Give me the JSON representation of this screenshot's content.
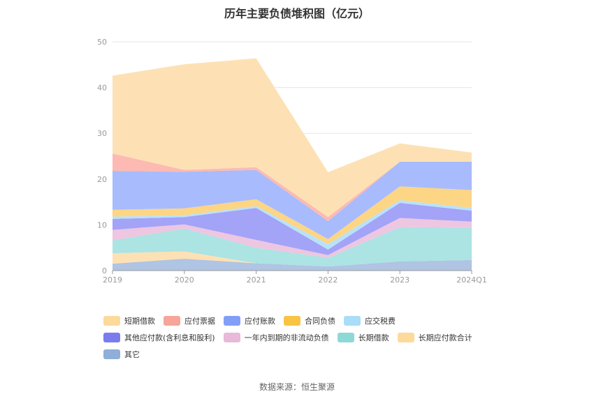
{
  "chart_data": {
    "type": "area",
    "title": "历年主要负债堆积图（亿元）",
    "categories": [
      "2019",
      "2020",
      "2021",
      "2022",
      "2023",
      "2024Q1"
    ],
    "ylim": [
      0,
      50
    ],
    "yticks": [
      0,
      10,
      20,
      30,
      40,
      50
    ],
    "grid": true,
    "legend_position": "bottom",
    "series": [
      {
        "name": "其它",
        "color": "#b0c4e3",
        "values": [
          1.5,
          2.6,
          1.6,
          0.9,
          2.0,
          2.3
        ]
      },
      {
        "name": "长期应付款合计",
        "color": "#fde1b4",
        "values": [
          2.3,
          1.6,
          0.0,
          0.0,
          0.0,
          0.0
        ]
      },
      {
        "name": "长期借款",
        "color": "#ace3e3",
        "values": [
          2.8,
          5.0,
          3.4,
          1.9,
          7.5,
          7.1
        ]
      },
      {
        "name": "一年内到期的非流动负债",
        "color": "#edc6e1",
        "values": [
          2.3,
          0.9,
          1.7,
          0.6,
          2.0,
          1.3
        ]
      },
      {
        "name": "其他应付款(含利息和股利)",
        "color": "#a3a3f7",
        "values": [
          2.4,
          1.6,
          7.0,
          1.2,
          3.3,
          2.4
        ]
      },
      {
        "name": "应交税费",
        "color": "#b9e2f9",
        "values": [
          0.5,
          0.4,
          0.4,
          1.2,
          0.6,
          0.6
        ]
      },
      {
        "name": "合同负债",
        "color": "#fcd585",
        "values": [
          1.5,
          1.5,
          1.5,
          1.1,
          3.0,
          3.9
        ]
      },
      {
        "name": "应付账款",
        "color": "#a8bbfc",
        "values": [
          8.5,
          8.0,
          6.4,
          3.9,
          5.4,
          6.2
        ]
      },
      {
        "name": "应付票据",
        "color": "#fcbab3",
        "values": [
          3.8,
          0.4,
          0.6,
          0.9,
          0.0,
          0.0
        ]
      },
      {
        "name": "短期借款",
        "color": "#fde1b4",
        "values": [
          17.0,
          23.1,
          23.8,
          9.8,
          4.0,
          2.0
        ]
      }
    ],
    "legend": [
      {
        "name": "短期借款",
        "color": "#fdd99a"
      },
      {
        "name": "应付票据",
        "color": "#f7a49a"
      },
      {
        "name": "应付账款",
        "color": "#829ff7"
      },
      {
        "name": "合同负债",
        "color": "#f9c343"
      },
      {
        "name": "应交税费",
        "color": "#a9ddf8"
      },
      {
        "name": "其他应付款(含利息和股利)",
        "color": "#7b7bef"
      },
      {
        "name": "一年内到期的非流动负债",
        "color": "#e8b9d8"
      },
      {
        "name": "长期借款",
        "color": "#8fd8d8"
      },
      {
        "name": "长期应付款合计",
        "color": "#fdd99a"
      },
      {
        "name": "其它",
        "color": "#8faed8"
      }
    ]
  },
  "footer": {
    "source": "数据来源：恒生聚源"
  }
}
